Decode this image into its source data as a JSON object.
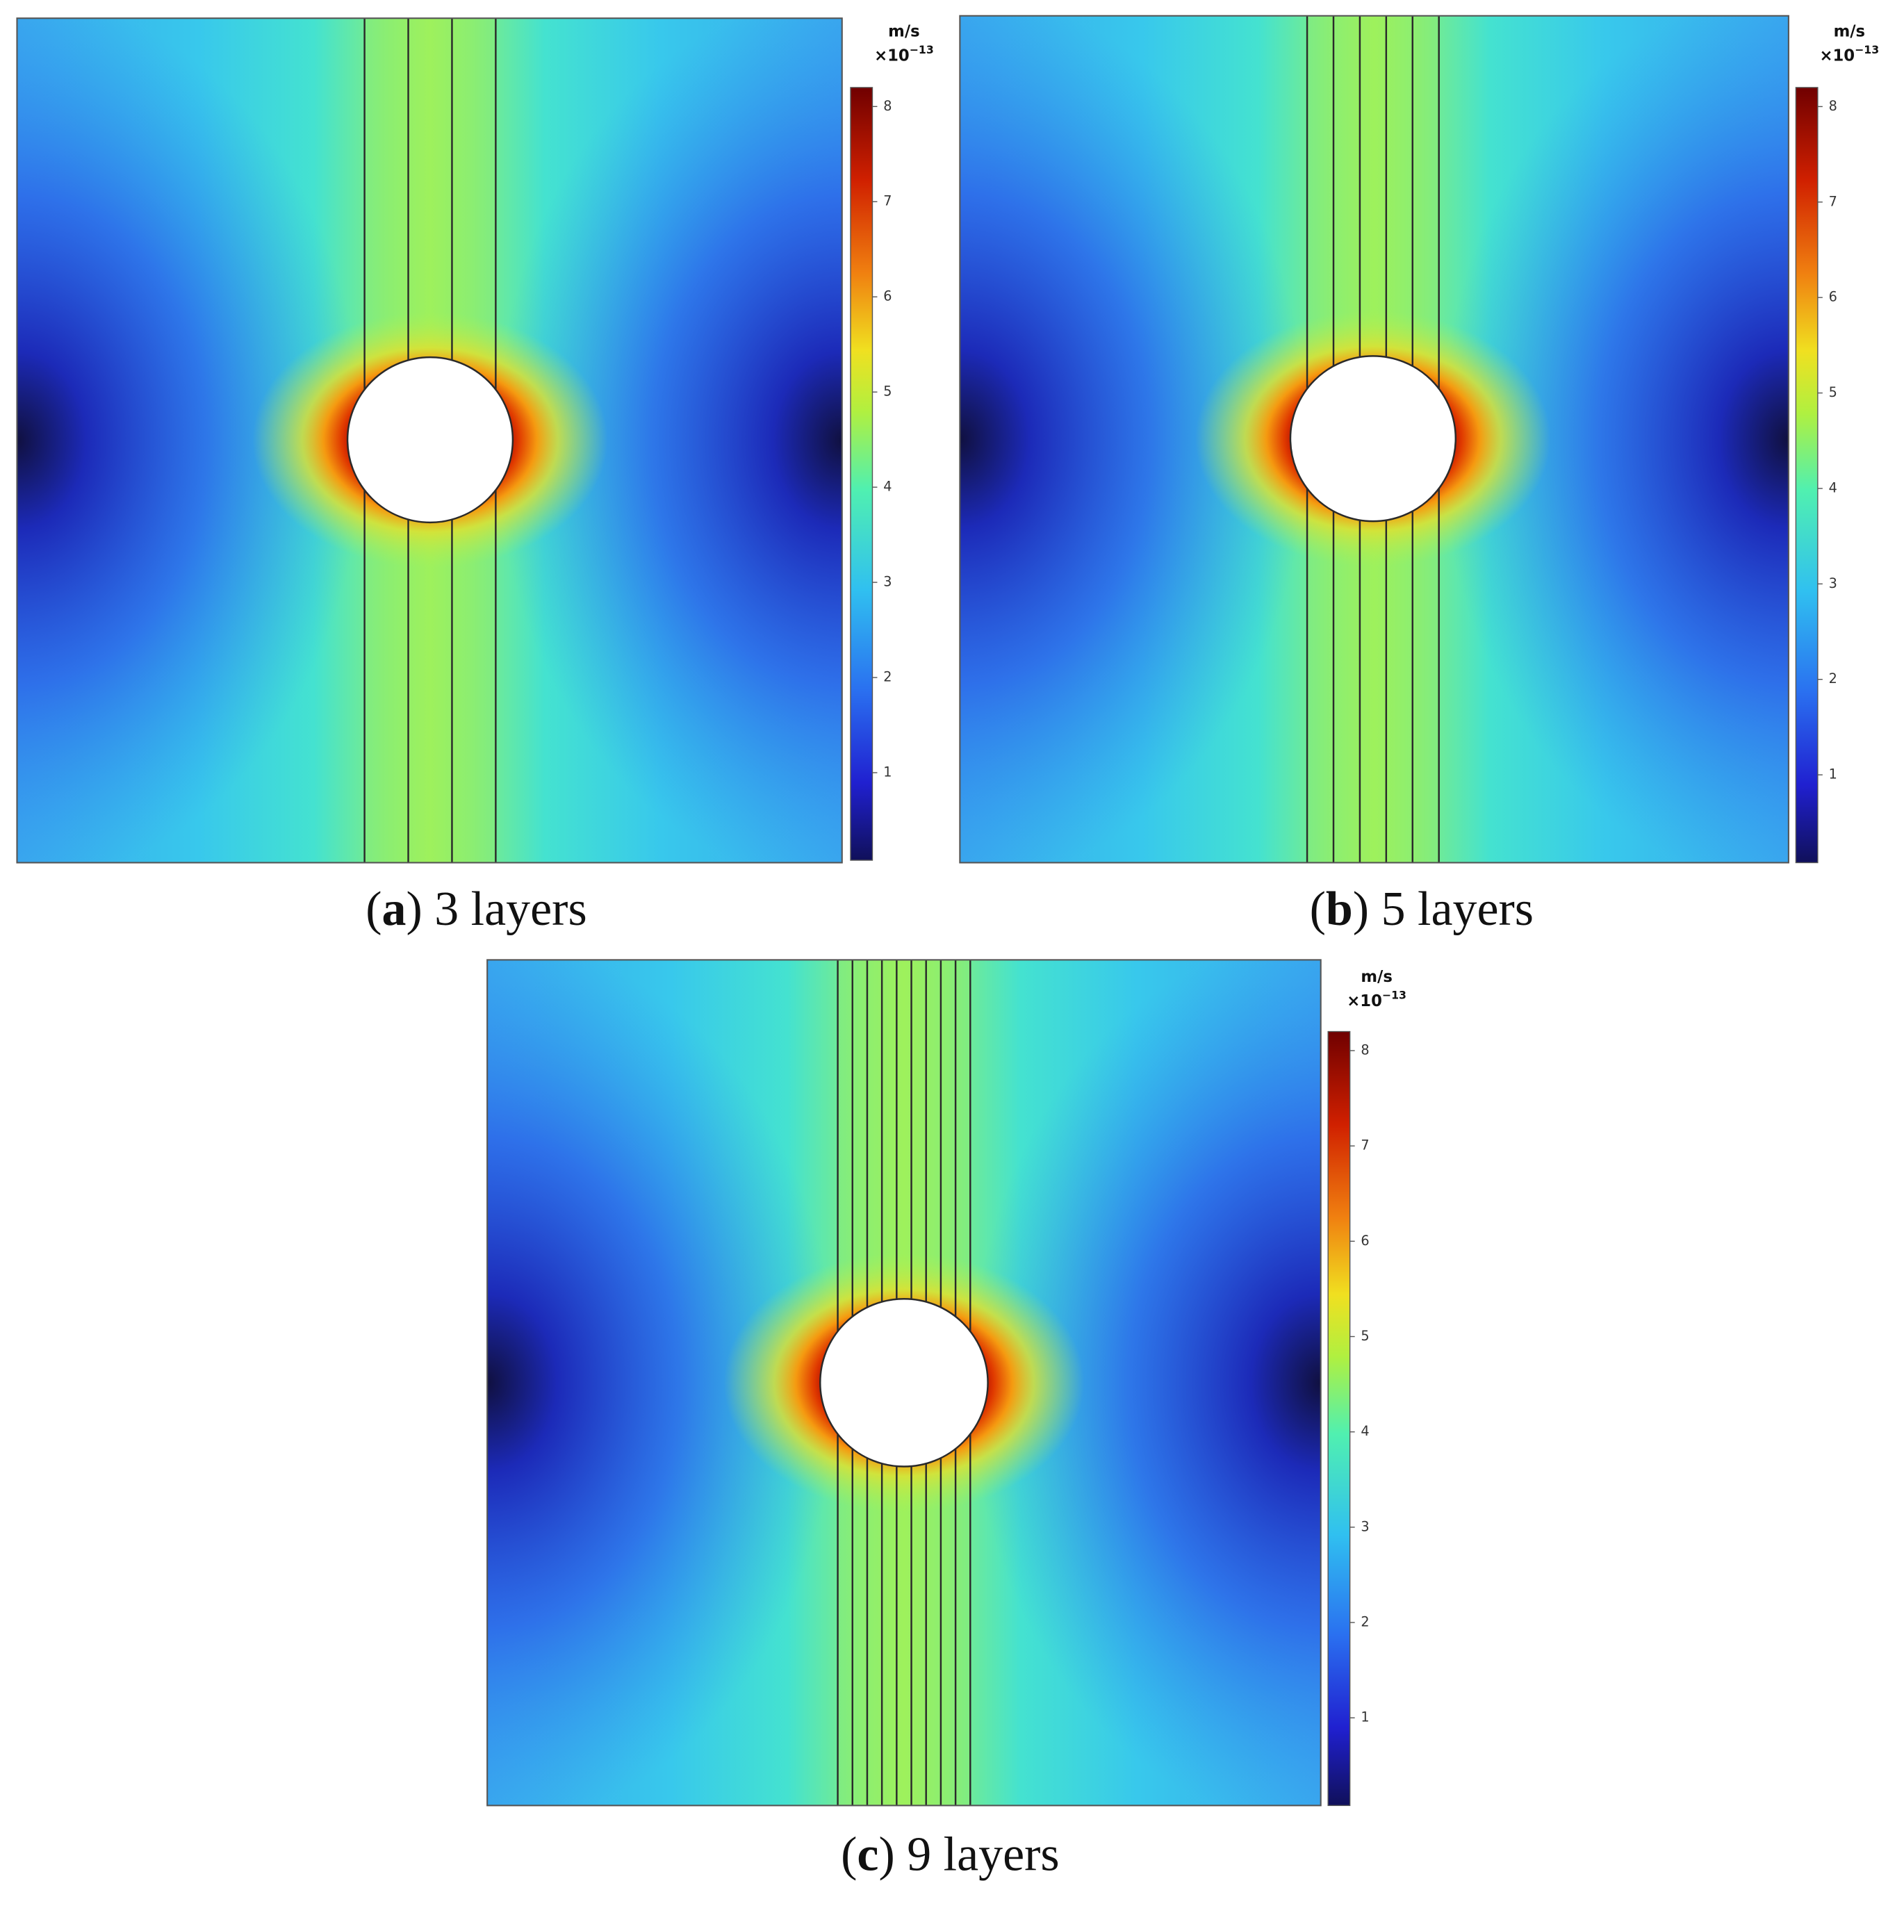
{
  "chart_data": [
    {
      "type": "field",
      "caption": [
        "(",
        "a",
        ") 3 layers"
      ],
      "layers": 3,
      "colorbar": {
        "unit": "m/s",
        "scale": "×10",
        "exponent": "−13",
        "clim": [
          0.08,
          8.2
        ],
        "ticks": [
          1,
          2,
          3,
          4,
          5,
          6,
          7,
          8
        ]
      }
    },
    {
      "type": "field",
      "caption": [
        "(",
        "b",
        ") 5 layers"
      ],
      "layers": 5,
      "colorbar": {
        "unit": "m/s",
        "scale": "×10",
        "exponent": "−13",
        "clim": [
          0.08,
          8.2
        ],
        "ticks": [
          1,
          2,
          3,
          4,
          5,
          6,
          7,
          8
        ]
      }
    },
    {
      "type": "field",
      "caption": [
        "(",
        "c",
        ") 9 layers"
      ],
      "layers": 9,
      "colorbar": {
        "unit": "m/s",
        "scale": "×10",
        "exponent": "−13",
        "clim": [
          0.08,
          8.2
        ],
        "ticks": [
          1,
          2,
          3,
          4,
          5,
          6,
          7,
          8
        ]
      }
    }
  ]
}
